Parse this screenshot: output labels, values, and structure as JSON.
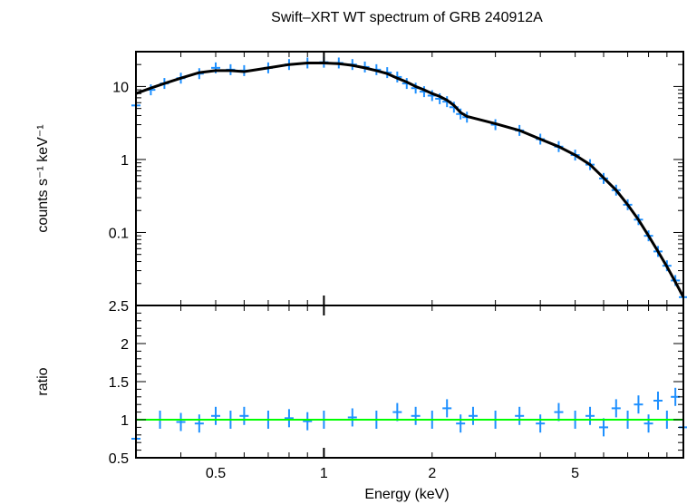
{
  "chart_data": [
    {
      "type": "scatter",
      "title": "Swift–XRT WT spectrum of GRB 240912A",
      "ylabel": "counts s⁻¹ keV⁻¹",
      "xlabel": "",
      "xscale": "log",
      "yscale": "log",
      "xlim": [
        0.3,
        10
      ],
      "ylim": [
        0.01,
        30
      ],
      "yticks": [
        {
          "v": 0.1,
          "label": "0.1"
        },
        {
          "v": 1,
          "label": "1"
        },
        {
          "v": 10,
          "label": "10"
        }
      ],
      "series": [
        {
          "style": "data points with error bars",
          "color": "#1e90ff",
          "x": [
            0.3,
            0.33,
            0.36,
            0.4,
            0.45,
            0.5,
            0.55,
            0.6,
            0.7,
            0.8,
            0.9,
            1.0,
            1.1,
            1.2,
            1.3,
            1.4,
            1.5,
            1.6,
            1.7,
            1.8,
            1.9,
            2.0,
            2.1,
            2.2,
            2.3,
            2.4,
            2.5,
            3.0,
            3.5,
            4.0,
            4.5,
            5.0,
            5.5,
            6.0,
            6.5,
            7.0,
            7.5,
            8.0,
            8.5,
            9.0,
            9.5,
            10.0
          ],
          "y": [
            5.5,
            9,
            11,
            13,
            15,
            18,
            17,
            16.5,
            18,
            20,
            21,
            21.5,
            21,
            20,
            18.5,
            17,
            15.5,
            13.5,
            11,
            9.5,
            8.5,
            7.5,
            6.8,
            6.2,
            5.2,
            4.2,
            3.8,
            3.0,
            2.5,
            1.9,
            1.5,
            1.15,
            0.85,
            0.55,
            0.38,
            0.24,
            0.15,
            0.09,
            0.055,
            0.035,
            0.022,
            0.013
          ]
        },
        {
          "style": "model line",
          "color": "#000000",
          "x": [
            0.3,
            0.33,
            0.36,
            0.4,
            0.45,
            0.5,
            0.55,
            0.6,
            0.7,
            0.8,
            0.9,
            1.0,
            1.1,
            1.2,
            1.3,
            1.4,
            1.5,
            1.6,
            1.7,
            1.8,
            1.9,
            2.0,
            2.1,
            2.2,
            2.3,
            2.4,
            2.5,
            3.0,
            3.5,
            4.0,
            4.5,
            5.0,
            5.5,
            6.0,
            6.5,
            7.0,
            7.5,
            8.0,
            8.5,
            9.0,
            9.5,
            10.0
          ],
          "y": [
            8,
            9.5,
            11,
            13,
            15.5,
            16.5,
            16.5,
            16,
            18,
            20,
            21,
            21,
            20.5,
            19.5,
            18,
            16.5,
            15,
            13,
            11.5,
            10,
            9,
            8,
            7.3,
            6.5,
            5.5,
            4.4,
            3.9,
            3.1,
            2.5,
            1.9,
            1.5,
            1.15,
            0.85,
            0.56,
            0.38,
            0.24,
            0.15,
            0.09,
            0.055,
            0.034,
            0.021,
            0.013
          ]
        }
      ]
    },
    {
      "type": "scatter",
      "title": "",
      "ylabel": "ratio",
      "xlabel": "Energy (keV)",
      "xscale": "log",
      "xlim": [
        0.3,
        10
      ],
      "ylim": [
        0.5,
        2.5
      ],
      "xticks": [
        {
          "v": 0.5,
          "label": "0.5"
        },
        {
          "v": 1,
          "label": "1"
        },
        {
          "v": 2,
          "label": "2"
        },
        {
          "v": 5,
          "label": "5"
        }
      ],
      "yticks": [
        {
          "v": 0.5,
          "label": "0.5"
        },
        {
          "v": 1,
          "label": "1"
        },
        {
          "v": 1.5,
          "label": "1.5"
        },
        {
          "v": 2,
          "label": "2"
        },
        {
          "v": 2.5,
          "label": "2.5"
        }
      ],
      "series": [
        {
          "style": "data points with error bars",
          "color": "#1e90ff",
          "x": [
            0.3,
            0.35,
            0.4,
            0.45,
            0.5,
            0.55,
            0.6,
            0.7,
            0.8,
            0.9,
            1.0,
            1.2,
            1.4,
            1.6,
            1.8,
            2.0,
            2.2,
            2.4,
            2.6,
            3.0,
            3.5,
            4.0,
            4.5,
            5.0,
            5.5,
            6.0,
            6.5,
            7.0,
            7.5,
            8.0,
            8.5,
            9.0,
            9.5,
            10.0
          ],
          "y": [
            0.75,
            1.0,
            0.97,
            0.95,
            1.05,
            1.0,
            1.05,
            1.0,
            1.02,
            0.98,
            1.0,
            1.03,
            1.0,
            1.1,
            1.05,
            1.0,
            1.15,
            0.95,
            1.05,
            1.0,
            1.05,
            0.95,
            1.1,
            1.0,
            1.05,
            0.9,
            1.15,
            1.0,
            1.2,
            0.95,
            1.25,
            1.0,
            1.3,
            0.9
          ]
        },
        {
          "style": "reference line",
          "color": "#00ff00",
          "x": [
            0.3,
            10
          ],
          "y": [
            1,
            1
          ]
        }
      ]
    }
  ]
}
